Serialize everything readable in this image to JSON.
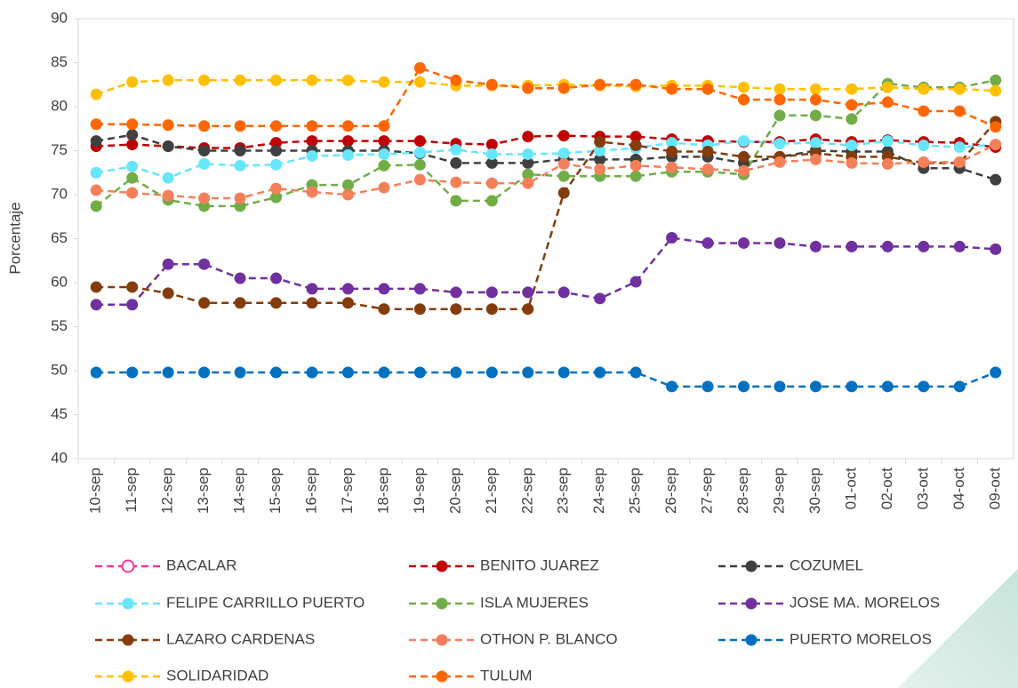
{
  "chart_data": {
    "type": "line",
    "y_label": "Porcentaje",
    "categories": [
      "10-sep",
      "11-sep",
      "12-sep",
      "13-sep",
      "14-sep",
      "15-sep",
      "16-sep",
      "17-sep",
      "18-sep",
      "19-sep",
      "20-sep",
      "21-sep",
      "22-sep",
      "23-sep",
      "24-sep",
      "25-sep",
      "26-sep",
      "27-sep",
      "28-sep",
      "29-sep",
      "30-sep",
      "01-oct",
      "02-oct",
      "03-oct",
      "04-oct",
      "09-oct"
    ],
    "ylim": [
      40,
      90
    ],
    "yticks": [
      40,
      45,
      50,
      55,
      60,
      65,
      70,
      75,
      80,
      85,
      90
    ],
    "series": [
      {
        "name": "BACALAR",
        "color": "#ff3399",
        "values": [
          null,
          null,
          null,
          null,
          null,
          null,
          null,
          null,
          null,
          null,
          null,
          null,
          null,
          null,
          null,
          null,
          null,
          null,
          null,
          null,
          null,
          null,
          null,
          null,
          null,
          null
        ]
      },
      {
        "name": "BENITO JUAREZ",
        "color": "#c00000",
        "values": [
          75.5,
          75.7,
          75.5,
          75.3,
          75.3,
          75.9,
          76.1,
          76.1,
          76.1,
          76.1,
          75.8,
          75.7,
          76.6,
          76.7,
          76.6,
          76.6,
          76.3,
          76.1,
          76,
          76,
          76.3,
          76,
          76.2,
          76,
          75.9,
          75.4
        ]
      },
      {
        "name": "COZUMEL",
        "color": "#404040",
        "values": [
          76.1,
          76.8,
          75.5,
          75,
          75,
          75,
          75,
          75,
          75,
          74.7,
          73.6,
          73.6,
          73.6,
          74,
          74,
          74,
          74.3,
          74.3,
          73.6,
          74.3,
          75,
          74.9,
          74.9,
          73,
          73,
          71.7
        ]
      },
      {
        "name": "FELIPE CARRILLO PUERTO",
        "color": "#66e6ff",
        "values": [
          72.5,
          73.2,
          71.9,
          73.5,
          73.3,
          73.4,
          74.4,
          74.5,
          74.6,
          74.8,
          75.1,
          74.6,
          74.6,
          74.7,
          75,
          75.3,
          75.9,
          75.6,
          76.1,
          75.8,
          75.9,
          75.6,
          76.1,
          75.6,
          75.4,
          75.7
        ]
      },
      {
        "name": "ISLA MUJERES",
        "color": "#70ad47",
        "values": [
          68.7,
          71.9,
          69.4,
          68.7,
          68.7,
          69.7,
          71.1,
          71.1,
          73.3,
          73.4,
          69.3,
          69.3,
          72.3,
          72.1,
          72.1,
          72.1,
          72.6,
          72.6,
          72.3,
          79,
          79,
          78.6,
          82.6,
          82.2,
          82.2,
          83
        ]
      },
      {
        "name": "JOSE MA. MORELOS",
        "color": "#7030a0",
        "values": [
          57.5,
          57.5,
          62.1,
          62.1,
          60.5,
          60.5,
          59.3,
          59.3,
          59.3,
          59.3,
          58.9,
          58.9,
          58.9,
          58.9,
          58.2,
          60.1,
          65.1,
          64.5,
          64.5,
          64.5,
          64.1,
          64.1,
          64.1,
          64.1,
          64.1,
          63.8
        ]
      },
      {
        "name": "LAZARO CARDENAS",
        "color": "#843c0c",
        "values": [
          59.5,
          59.5,
          58.8,
          57.7,
          57.7,
          57.7,
          57.7,
          57.7,
          57,
          57,
          57,
          57,
          57,
          70.2,
          76,
          75.6,
          74.9,
          74.9,
          74.3,
          74.3,
          74.7,
          74.3,
          74.3,
          73.6,
          73.6,
          78.3
        ]
      },
      {
        "name": "OTHON P. BLANCO",
        "color": "#f4805a",
        "values": [
          70.5,
          70.2,
          69.9,
          69.6,
          69.6,
          70.7,
          70.3,
          70,
          70.8,
          71.7,
          71.4,
          71.3,
          71.3,
          73.5,
          72.9,
          73.3,
          73.1,
          72.9,
          72.7,
          73.7,
          74,
          73.6,
          73.5,
          73.7,
          73.7,
          75.7
        ]
      },
      {
        "name": "PUERTO MORELOS",
        "color": "#0070c0",
        "values": [
          49.8,
          49.8,
          49.8,
          49.8,
          49.8,
          49.8,
          49.8,
          49.8,
          49.8,
          49.8,
          49.8,
          49.8,
          49.8,
          49.8,
          49.8,
          49.8,
          48.2,
          48.2,
          48.2,
          48.2,
          48.2,
          48.2,
          48.2,
          48.2,
          48.2,
          49.8
        ]
      },
      {
        "name": "SOLIDARIDAD",
        "color": "#ffc000",
        "values": [
          81.4,
          82.8,
          83,
          83,
          83,
          83,
          83,
          83,
          82.8,
          82.8,
          82.4,
          82.4,
          82.4,
          82.5,
          82.4,
          82.3,
          82.4,
          82.4,
          82.2,
          82,
          82,
          82,
          82.2,
          82,
          82,
          81.8
        ]
      },
      {
        "name": "TULUM",
        "color": "#ff6600",
        "values": [
          78,
          78,
          77.9,
          77.8,
          77.8,
          77.8,
          77.8,
          77.8,
          77.8,
          84.4,
          83,
          82.5,
          82.1,
          82.1,
          82.5,
          82.5,
          82,
          82,
          80.8,
          80.8,
          80.8,
          80.2,
          80.5,
          79.5,
          79.5,
          77.7
        ]
      }
    ]
  }
}
